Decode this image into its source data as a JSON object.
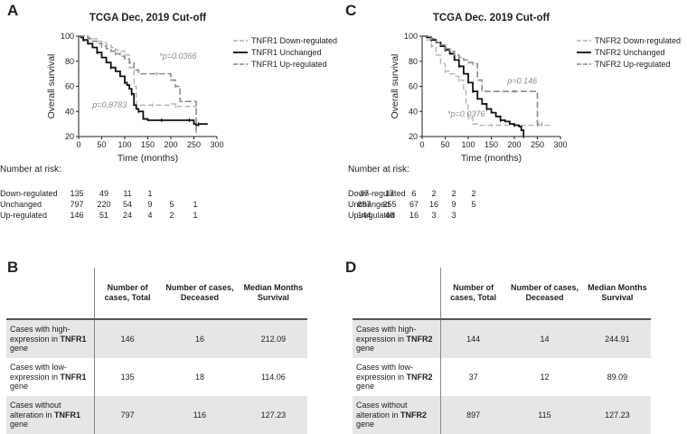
{
  "panel_letters": {
    "A": "A",
    "B": "B",
    "C": "C",
    "D": "D"
  },
  "colors": {
    "down": "#b3b3b3",
    "unchanged": "#111111",
    "up": "#8c8c8c",
    "table_gray": "#e6e6e6"
  },
  "chart_data": [
    {
      "type": "line",
      "title": "TCGA  Dec, 2019 Cut-off",
      "xlabel": "Time (months)",
      "ylabel": "Overall survival",
      "xlim": [
        0,
        300
      ],
      "ylim": [
        20,
        100
      ],
      "xticks": [
        0,
        50,
        100,
        150,
        200,
        250,
        300
      ],
      "yticks": [
        20,
        40,
        60,
        80,
        100
      ],
      "legend": [
        "TNFR1 Down-regulated",
        "TNFR1 Unchanged",
        "TNFR1 Up-regulated"
      ],
      "annotations": [
        {
          "text": "*p=0.0366",
          "x": 175,
          "y": 82
        },
        {
          "text": "p=0.8783",
          "x": 30,
          "y": 43
        }
      ],
      "series": [
        {
          "name": "TNFR1 Down-regulated",
          "style": "down",
          "x": [
            0,
            10,
            20,
            30,
            40,
            50,
            60,
            70,
            80,
            90,
            100,
            110,
            120,
            125,
            160,
            180,
            200,
            210,
            220,
            240,
            255
          ],
          "y": [
            100,
            100,
            99,
            98,
            96,
            95,
            93,
            91,
            89,
            88,
            85,
            75,
            60,
            45,
            45,
            45,
            46,
            44,
            44,
            44,
            44
          ]
        },
        {
          "name": "TNFR1 Unchanged",
          "style": "unchanged",
          "x": [
            0,
            5,
            10,
            20,
            30,
            40,
            50,
            60,
            70,
            80,
            90,
            100,
            105,
            110,
            115,
            120,
            125,
            130,
            140,
            150,
            180,
            190,
            200,
            240,
            250,
            255,
            260,
            270,
            280
          ],
          "y": [
            100,
            99,
            97,
            94,
            91,
            87,
            83,
            79,
            75,
            72,
            68,
            63,
            61,
            58,
            54,
            45,
            42,
            40,
            34,
            33,
            33,
            33,
            33,
            33,
            30,
            29,
            30,
            30,
            30
          ]
        },
        {
          "name": "TNFR1 Up-regulated",
          "style": "up",
          "x": [
            0,
            10,
            20,
            30,
            40,
            50,
            60,
            70,
            80,
            90,
            100,
            110,
            120,
            130,
            170,
            180,
            200,
            210,
            220,
            250,
            255
          ],
          "y": [
            100,
            100,
            98,
            96,
            94,
            92,
            90,
            88,
            86,
            84,
            82,
            79,
            73,
            70,
            70,
            70,
            65,
            60,
            48,
            48,
            24
          ]
        }
      ]
    },
    {
      "type": "line",
      "title": "TCGA  Dec. 2019 Cut-off",
      "xlabel": "Time (months)",
      "ylabel": "Overall survival",
      "xlim": [
        0,
        300
      ],
      "ylim": [
        20,
        100
      ],
      "xticks": [
        0,
        50,
        100,
        150,
        200,
        250,
        300
      ],
      "yticks": [
        20,
        40,
        60,
        80,
        100
      ],
      "legend": [
        "TNFR2 Down-regulated",
        "TNFR2 Unchanged",
        "TNFR2 Up-regulated"
      ],
      "annotations": [
        {
          "text": "p=0.146",
          "x": 185,
          "y": 62
        },
        {
          "text": "*p=0.0376",
          "x": 55,
          "y": 36
        }
      ],
      "series": [
        {
          "name": "TNFR2 Down-regulated",
          "style": "down",
          "x": [
            0,
            10,
            20,
            30,
            40,
            50,
            60,
            70,
            80,
            90,
            95,
            100,
            110,
            120,
            150,
            200,
            240,
            250,
            280
          ],
          "y": [
            100,
            97,
            92,
            85,
            78,
            72,
            70,
            68,
            65,
            58,
            45,
            35,
            30,
            29,
            29,
            29,
            29,
            29,
            29
          ]
        },
        {
          "name": "TNFR2 Unchanged",
          "style": "unchanged",
          "x": [
            0,
            10,
            20,
            30,
            40,
            50,
            60,
            70,
            80,
            90,
            100,
            110,
            120,
            130,
            140,
            150,
            160,
            170,
            180,
            190,
            200,
            210,
            215,
            220
          ],
          "y": [
            100,
            99,
            97,
            95,
            92,
            89,
            86,
            81,
            76,
            70,
            63,
            56,
            50,
            46,
            42,
            39,
            36,
            33,
            32,
            30,
            29,
            28,
            25,
            20
          ]
        },
        {
          "name": "TNFR2 Up-regulated",
          "style": "up",
          "x": [
            0,
            10,
            20,
            30,
            40,
            50,
            60,
            70,
            80,
            90,
            100,
            110,
            120,
            130,
            200,
            240,
            250,
            260
          ],
          "y": [
            100,
            100,
            98,
            95,
            93,
            90,
            88,
            85,
            83,
            81,
            79,
            78,
            65,
            56,
            56,
            56,
            30,
            30
          ]
        }
      ]
    }
  ],
  "risk_left": {
    "heading": "Number at risk:",
    "rows": [
      {
        "label": "Down-regulated",
        "values": [
          "135",
          "49",
          "11",
          "1"
        ]
      },
      {
        "label": "Unchanged",
        "values": [
          "797",
          "220",
          "54",
          "9",
          "5",
          "1"
        ]
      },
      {
        "label": "Up-regulated",
        "values": [
          "146",
          "51",
          "24",
          "4",
          "2",
          "1"
        ]
      }
    ]
  },
  "risk_right": {
    "heading": "Number at risk:",
    "rows": [
      {
        "label": "Down-regulated",
        "values": [
          "37",
          "17",
          "6",
          "2",
          "2",
          "2"
        ]
      },
      {
        "label": "Unchanged",
        "values": [
          "897",
          "255",
          "67",
          "16",
          "9",
          "5"
        ]
      },
      {
        "label": "Up-regulated",
        "values": [
          "144",
          "48",
          "16",
          "3",
          "3"
        ]
      }
    ]
  },
  "table_left": {
    "headers": [
      "Number of cases, Total",
      "Number of cases, Deceased",
      "Median Months Survival"
    ],
    "rows": [
      {
        "pre": "Cases with high-expression in ",
        "gene": "TNFR1",
        "post": " gene",
        "values": [
          "146",
          "16",
          "212.09"
        ]
      },
      {
        "pre": "Cases with low-expression in ",
        "gene": "TNFR1",
        "post": " gene",
        "values": [
          "135",
          "18",
          "114.06"
        ]
      },
      {
        "pre": "Cases without alteration in ",
        "gene": "TNFR1",
        "post": " gene",
        "values": [
          "797",
          "116",
          "127.23"
        ]
      }
    ]
  },
  "table_right": {
    "headers": [
      "Number of cases, Total",
      "Number of cases, Deceased",
      "Median Months Survival"
    ],
    "rows": [
      {
        "pre": "Cases with high-expression in ",
        "gene": "TNFR2",
        "post": " gene",
        "values": [
          "144",
          "14",
          "244.91"
        ]
      },
      {
        "pre": "Cases with low-expression in ",
        "gene": "TNFR2",
        "post": " gene",
        "values": [
          "37",
          "12",
          "89.09"
        ]
      },
      {
        "pre": "Cases without alteration in ",
        "gene": "TNFR2",
        "post": " gene",
        "values": [
          "897",
          "115",
          "127.23"
        ]
      }
    ]
  }
}
